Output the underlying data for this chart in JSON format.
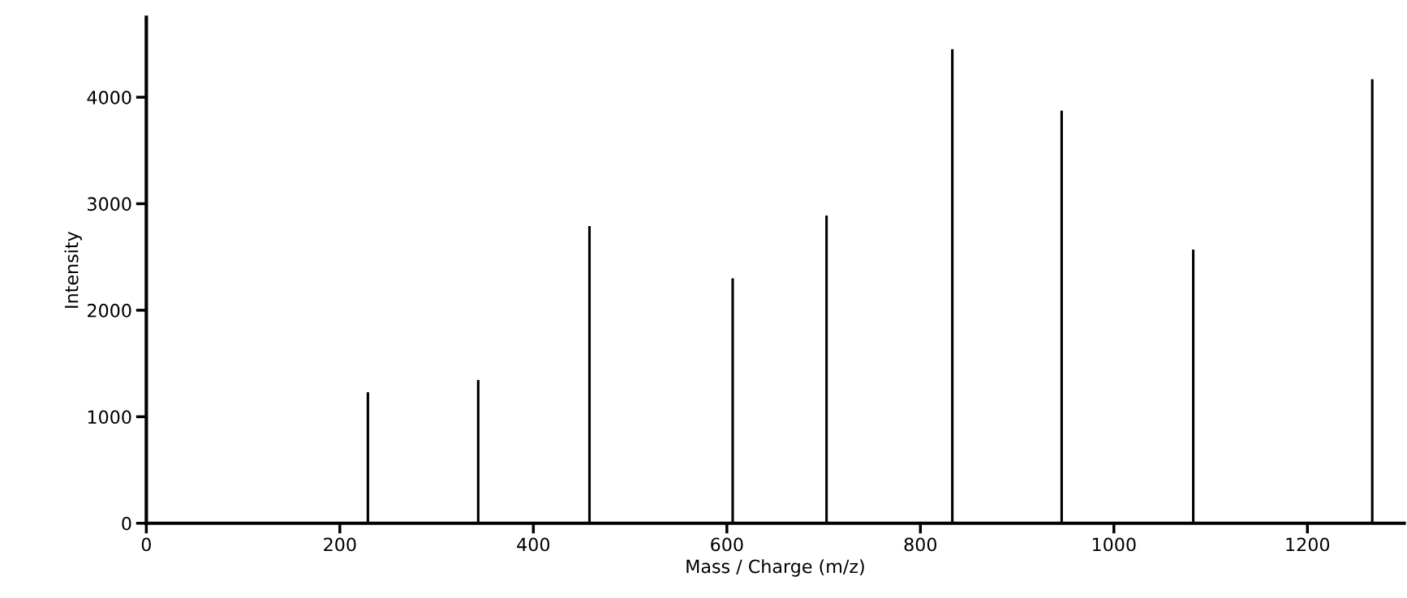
{
  "chart_data": {
    "type": "bar",
    "xlabel": "Mass / Charge (m/z)",
    "ylabel": "Intensity",
    "x": [
      229,
      343,
      458,
      606,
      703,
      833,
      946,
      1082,
      1267
    ],
    "values": [
      1230,
      1345,
      2790,
      2300,
      2890,
      4450,
      3875,
      2570,
      4170
    ],
    "color": "#000000",
    "xlim": [
      0,
      1300
    ],
    "xticks": [
      0,
      200,
      400,
      600,
      800,
      1000,
      1200
    ],
    "ylim": [
      0,
      4750
    ],
    "yticks": [
      0,
      1000,
      2000,
      3000,
      4000
    ],
    "grid": false
  }
}
